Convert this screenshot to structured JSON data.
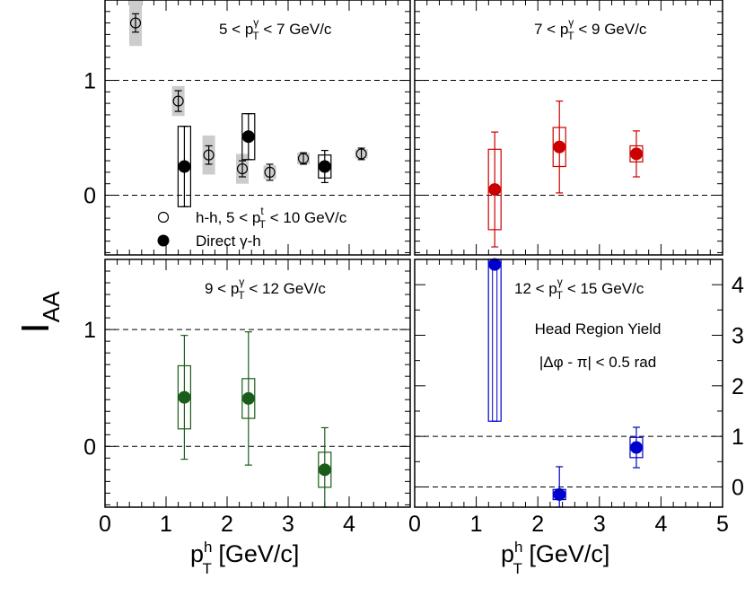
{
  "chart_data": {
    "type": "scatter",
    "title": "",
    "ylabel": "I",
    "ylabel_sub": "AA",
    "xlabel": {
      "p": "p",
      "sup": "h",
      "sub": "T",
      "unit": " [GeV/c]"
    },
    "xlim": [
      0,
      5
    ],
    "x_ticks": [
      "0",
      "1",
      "2",
      "3",
      "4",
      "5"
    ],
    "panels": [
      {
        "id": "top-left",
        "range_label": {
          "a": "5 < p",
          "sup": "γ",
          "sub": "T",
          "b": " < 7 GeV/c"
        },
        "ylim": [
          -0.52,
          1.7
        ],
        "y_ticks": [
          "0",
          "1"
        ],
        "ref_lines": [
          0,
          1
        ],
        "color": "#000000",
        "legend": [
          {
            "marker": "open",
            "a": "h-h, 5 < p",
            "sup": "t",
            "sub": "T",
            "b": " < 10 GeV/c"
          },
          {
            "marker": "filled",
            "a": "Direct γ-h",
            "sup": "",
            "sub": "",
            "b": ""
          }
        ],
        "series": [
          {
            "name": "h-h, 5 < pT < 10 GeV/c",
            "marker": "open",
            "points": [
              {
                "x": 0.5,
                "y": 1.5,
                "err": 0.08,
                "sys": 0.2
              },
              {
                "x": 1.2,
                "y": 0.82,
                "err": 0.09,
                "sys": 0.13
              },
              {
                "x": 1.7,
                "y": 0.35,
                "err": 0.08,
                "sys": 0.17
              },
              {
                "x": 2.25,
                "y": 0.23,
                "err": 0.07,
                "sys": 0.13
              },
              {
                "x": 2.7,
                "y": 0.2,
                "err": 0.07,
                "sys": 0.06
              },
              {
                "x": 3.25,
                "y": 0.32,
                "err": 0.05,
                "sys": 0.05
              },
              {
                "x": 4.2,
                "y": 0.36,
                "err": 0.05,
                "sys": 0.04
              }
            ]
          },
          {
            "name": "Direct γ-h",
            "marker": "filled",
            "points": [
              {
                "x": 1.3,
                "y": 0.25,
                "err": 0.35,
                "sys": 0.35
              },
              {
                "x": 2.35,
                "y": 0.51,
                "err": 0.2,
                "sys": 0.2
              },
              {
                "x": 3.6,
                "y": 0.25,
                "err": 0.14,
                "sys": 0.1
              }
            ]
          }
        ]
      },
      {
        "id": "top-right",
        "range_label": {
          "a": "7 < p",
          "sup": "γ",
          "sub": "T",
          "b": " < 9 GeV/c"
        },
        "ylim": [
          -0.52,
          1.7
        ],
        "y_ticks": [],
        "ref_lines": [
          0,
          1
        ],
        "color": "#cc0000",
        "series": [
          {
            "name": "Direct γ-h",
            "marker": "filled",
            "points": [
              {
                "x": 1.3,
                "y": 0.05,
                "err": 0.5,
                "sys": 0.35
              },
              {
                "x": 2.35,
                "y": 0.42,
                "err": 0.4,
                "sys": 0.17
              },
              {
                "x": 3.6,
                "y": 0.36,
                "err": 0.2,
                "sys": 0.07
              }
            ]
          }
        ]
      },
      {
        "id": "bottom-left",
        "range_label": {
          "a": "9 < p",
          "sup": "γ",
          "sub": "T",
          "b": " < 12 GeV/c"
        },
        "ylim": [
          -0.52,
          1.6
        ],
        "y_ticks": [
          "0",
          "1"
        ],
        "ref_lines": [
          0,
          1
        ],
        "color": "#1a5c1a",
        "series": [
          {
            "name": "Direct γ-h",
            "marker": "filled",
            "points": [
              {
                "x": 1.3,
                "y": 0.42,
                "err": 0.53,
                "sys": 0.27
              },
              {
                "x": 2.35,
                "y": 0.41,
                "err": 0.57,
                "sys": 0.17
              },
              {
                "x": 3.6,
                "y": -0.2,
                "err": 0.36,
                "sys": 0.15
              }
            ]
          }
        ]
      },
      {
        "id": "bottom-right",
        "range_label": {
          "a": "12 < p",
          "sup": "γ",
          "sub": "T",
          "b": " < 15 GeV/c"
        },
        "ylim": [
          -0.4,
          4.5
        ],
        "y_ticks": [
          "0",
          "1",
          "2",
          "3",
          "4"
        ],
        "y_axis_side": "right",
        "ref_lines": [
          0,
          1
        ],
        "color": "#0000cc",
        "annotations": [
          "Head Region Yield",
          "|Δφ - π| < 0.5 rad"
        ],
        "series": [
          {
            "name": "Direct γ-h",
            "marker": "filled",
            "points": [
              {
                "x": 1.3,
                "y": 4.4,
                "err": 0.0,
                "sys": 3.1
              },
              {
                "x": 2.35,
                "y": -0.15,
                "err": 0.55,
                "sys": 0.1
              },
              {
                "x": 3.6,
                "y": 0.78,
                "err": 0.4,
                "sys": 0.2
              }
            ]
          }
        ]
      }
    ]
  }
}
